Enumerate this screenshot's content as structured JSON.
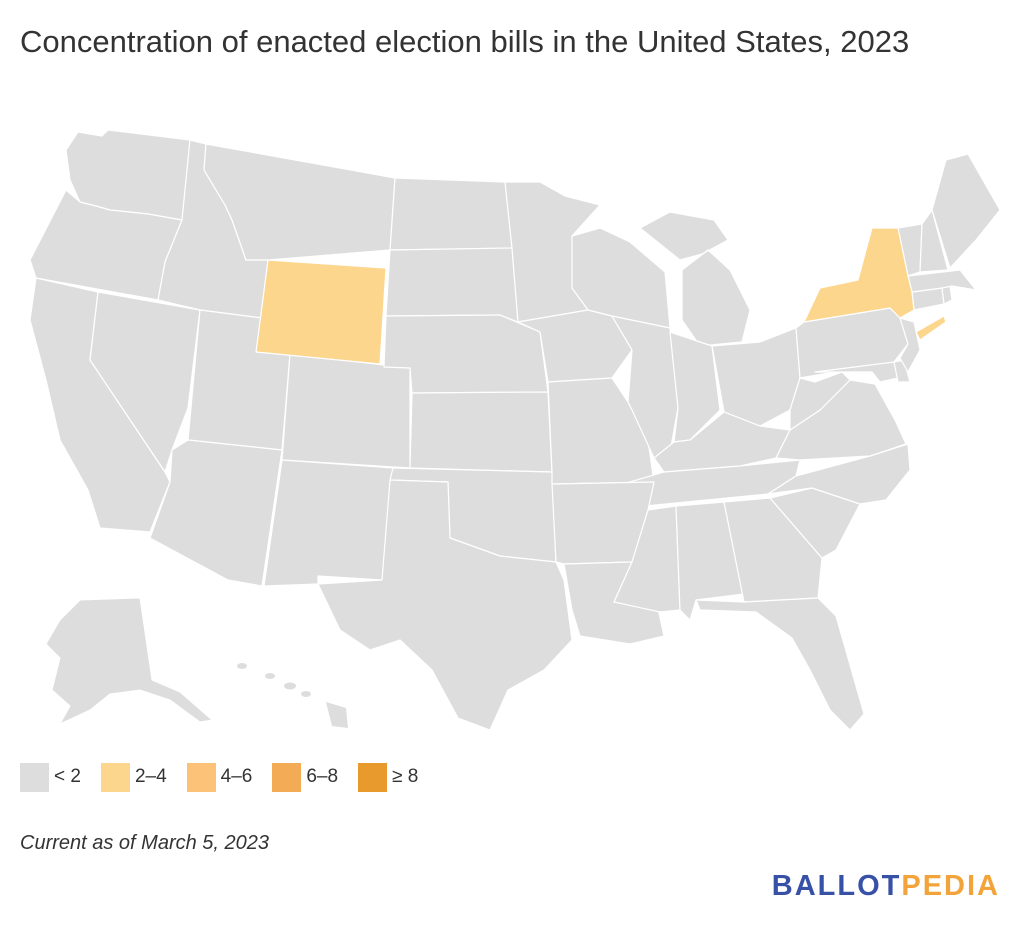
{
  "title": "Concentration of enacted election bills in the United States, 2023",
  "footnote": "Current as of March 5, 2023",
  "logo": {
    "part1": "BALLOT",
    "part2": "PEDIA"
  },
  "colors": {
    "background": "#ffffff",
    "default_state": "#dddddd",
    "state_border": "#ffffff",
    "highlight": "#fdd68d",
    "logo_blue": "#3751a6",
    "logo_orange": "#f2a43a"
  },
  "legend": [
    {
      "label": "< 2",
      "color": "#dddddd"
    },
    {
      "label": "2–4",
      "color": "#fdd68d"
    },
    {
      "label": "4–6",
      "color": "#fbc278"
    },
    {
      "label": "6–8",
      "color": "#f4ab55"
    },
    {
      "label": "≥ 8",
      "color": "#e99a2c"
    }
  ],
  "map": {
    "type": "choropleth",
    "region": "United States",
    "highlighted_states": [
      {
        "state": "Wyoming",
        "bin": "2–4"
      },
      {
        "state": "New York",
        "bin": "2–4"
      }
    ],
    "all_other_states_bin": "< 2"
  }
}
